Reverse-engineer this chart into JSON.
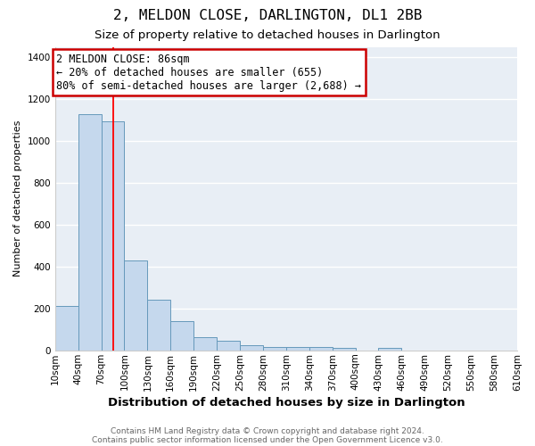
{
  "title": "2, MELDON CLOSE, DARLINGTON, DL1 2BB",
  "subtitle": "Size of property relative to detached houses in Darlington",
  "xlabel": "Distribution of detached houses by size in Darlington",
  "ylabel": "Number of detached properties",
  "bar_color": "#c5d8ed",
  "bar_edge_color": "#6699bb",
  "background_color": "#e8eef5",
  "grid_color": "#ffffff",
  "red_line_x": 86,
  "annotation_text": "2 MELDON CLOSE: 86sqm\n← 20% of detached houses are smaller (655)\n80% of semi-detached houses are larger (2,688) →",
  "annotation_box_edge": "#cc0000",
  "annotation_fontsize": 8.5,
  "bin_edges": [
    10,
    40,
    70,
    100,
    130,
    160,
    190,
    220,
    250,
    280,
    310,
    340,
    370,
    400,
    430,
    460,
    490,
    520,
    550,
    580,
    610
  ],
  "bin_heights": [
    210,
    1130,
    1095,
    430,
    240,
    140,
    62,
    48,
    25,
    15,
    15,
    15,
    10,
    0,
    10,
    0,
    0,
    0,
    0,
    0
  ],
  "ylim": [
    0,
    1450
  ],
  "yticks": [
    0,
    200,
    400,
    600,
    800,
    1000,
    1200,
    1400
  ],
  "footer_line1": "Contains HM Land Registry data © Crown copyright and database right 2024.",
  "footer_line2": "Contains public sector information licensed under the Open Government Licence v3.0.",
  "title_fontsize": 11.5,
  "subtitle_fontsize": 9.5,
  "xlabel_fontsize": 9.5,
  "ylabel_fontsize": 8,
  "tick_fontsize": 7.5,
  "footer_fontsize": 6.5
}
